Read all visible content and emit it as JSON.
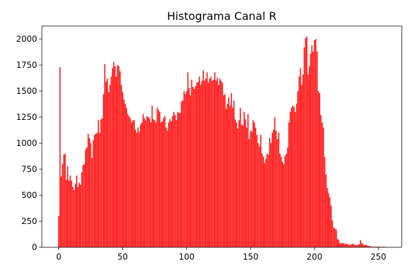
{
  "chart_data": {
    "type": "bar",
    "title": "Histograma Canal R",
    "color": "#ff0000",
    "x": [
      0,
      1,
      2,
      3,
      4,
      5,
      6,
      7,
      8,
      9,
      10,
      11,
      12,
      13,
      14,
      15,
      16,
      17,
      18,
      19,
      20,
      21,
      22,
      23,
      24,
      25,
      26,
      27,
      28,
      29,
      30,
      31,
      32,
      33,
      34,
      35,
      36,
      37,
      38,
      39,
      40,
      41,
      42,
      43,
      44,
      45,
      46,
      47,
      48,
      49,
      50,
      51,
      52,
      53,
      54,
      55,
      56,
      57,
      58,
      59,
      60,
      61,
      62,
      63,
      64,
      65,
      66,
      67,
      68,
      69,
      70,
      71,
      72,
      73,
      74,
      75,
      76,
      77,
      78,
      79,
      80,
      81,
      82,
      83,
      84,
      85,
      86,
      87,
      88,
      89,
      90,
      91,
      92,
      93,
      94,
      95,
      96,
      97,
      98,
      99,
      100,
      101,
      102,
      103,
      104,
      105,
      106,
      107,
      108,
      109,
      110,
      111,
      112,
      113,
      114,
      115,
      116,
      117,
      118,
      119,
      120,
      121,
      122,
      123,
      124,
      125,
      126,
      127,
      128,
      129,
      130,
      131,
      132,
      133,
      134,
      135,
      136,
      137,
      138,
      139,
      140,
      141,
      142,
      143,
      144,
      145,
      146,
      147,
      148,
      149,
      150,
      151,
      152,
      153,
      154,
      155,
      156,
      157,
      158,
      159,
      160,
      161,
      162,
      163,
      164,
      165,
      166,
      167,
      168,
      169,
      170,
      171,
      172,
      173,
      174,
      175,
      176,
      177,
      178,
      179,
      180,
      181,
      182,
      183,
      184,
      185,
      186,
      187,
      188,
      189,
      190,
      191,
      192,
      193,
      194,
      195,
      196,
      197,
      198,
      199,
      200,
      201,
      202,
      203,
      204,
      205,
      206,
      207,
      208,
      209,
      210,
      211,
      212,
      213,
      214,
      215,
      216,
      217,
      218,
      219,
      220,
      221,
      222,
      223,
      224,
      225,
      226,
      227,
      228,
      229,
      230,
      231,
      232,
      233,
      234,
      235,
      236,
      237,
      238,
      239,
      240,
      241,
      242,
      243,
      244,
      245,
      246,
      247,
      248,
      249,
      250,
      251,
      252,
      253,
      254,
      255
    ],
    "values": [
      300,
      1730,
      680,
      800,
      890,
      900,
      650,
      780,
      640,
      690,
      640,
      580,
      550,
      610,
      690,
      580,
      620,
      600,
      720,
      790,
      800,
      940,
      960,
      1090,
      1050,
      1000,
      860,
      1030,
      1080,
      1090,
      1100,
      1220,
      1100,
      1230,
      1240,
      1470,
      1760,
      1590,
      1620,
      1490,
      1560,
      1640,
      1720,
      1780,
      1740,
      1640,
      1750,
      1740,
      1690,
      1560,
      1490,
      1420,
      1380,
      1340,
      1280,
      1260,
      1240,
      1200,
      1220,
      1220,
      1130,
      1100,
      1150,
      1110,
      1180,
      1200,
      1280,
      1240,
      1220,
      1260,
      1250,
      1240,
      1200,
      1360,
      1230,
      1220,
      1200,
      1340,
      1320,
      1300,
      1200,
      1210,
      1240,
      1260,
      1150,
      1120,
      1200,
      1230,
      1210,
      1260,
      1300,
      1270,
      1220,
      1300,
      1290,
      1290,
      1400,
      1410,
      1500,
      1470,
      1500,
      1680,
      1530,
      1460,
      1610,
      1540,
      1520,
      1550,
      1580,
      1590,
      1640,
      1560,
      1600,
      1700,
      1600,
      1620,
      1680,
      1580,
      1620,
      1640,
      1600,
      1610,
      1680,
      1600,
      1630,
      1560,
      1620,
      1600,
      1580,
      1460,
      1470,
      1330,
      1380,
      1440,
      1360,
      1480,
      1340,
      1410,
      1230,
      1200,
      1140,
      1220,
      1340,
      1180,
      1170,
      1300,
      1230,
      1150,
      1280,
      1040,
      1120,
      1110,
      1220,
      1200,
      1150,
      1080,
      1000,
      970,
      1080,
      900,
      870,
      810,
      850,
      900,
      890,
      1050,
      1000,
      1100,
      1130,
      1250,
      1120,
      1040,
      1100,
      900,
      870,
      820,
      800,
      880,
      900,
      960,
      1200,
      1300,
      1340,
      1360,
      1350,
      1300,
      1380,
      1500,
      1640,
      1720,
      1560,
      1660,
      1920,
      2010,
      2024,
      1660,
      1740,
      1860,
      1940,
      1880,
      1990,
      2000,
      1880,
      1500,
      1480,
      1270,
      1200,
      1150,
      870,
      700,
      570,
      520,
      480,
      400,
      260,
      190,
      180,
      170,
      80,
      70,
      40,
      40,
      40,
      40,
      30,
      35,
      30,
      20,
      25,
      30,
      35,
      30,
      20,
      20,
      25,
      30,
      70,
      40,
      30,
      20,
      25,
      20,
      15,
      10,
      10,
      5,
      5,
      5,
      5,
      5,
      5,
      5,
      5,
      5,
      5,
      5
    ],
    "xlim": [
      -13.2,
      268.2
    ],
    "xticks": [
      0,
      50,
      100,
      150,
      200,
      250
    ],
    "ylim": [
      0,
      2125
    ],
    "yticks": [
      0,
      250,
      500,
      750,
      1000,
      1250,
      1500,
      1750,
      2000
    ]
  }
}
